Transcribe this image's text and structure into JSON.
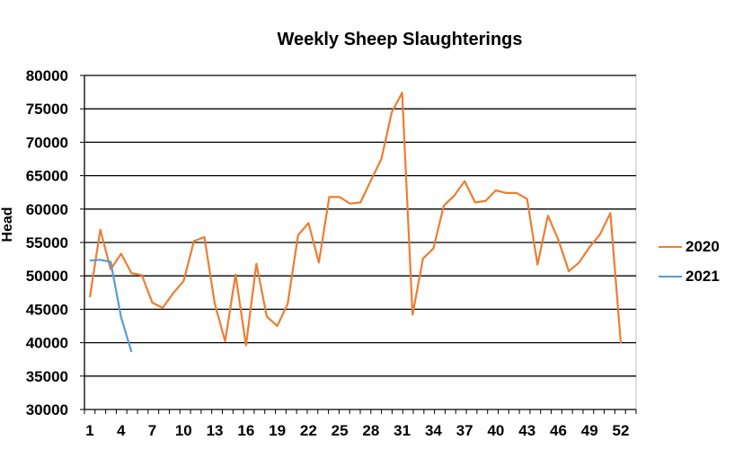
{
  "chart_data": {
    "type": "line",
    "title": "Weekly Sheep Slaughterings",
    "xlabel": "",
    "ylabel": "Head",
    "ylim": [
      30000,
      80000
    ],
    "yticks": [
      30000,
      35000,
      40000,
      45000,
      50000,
      55000,
      60000,
      65000,
      70000,
      75000,
      80000
    ],
    "xlim": [
      1,
      52
    ],
    "xtick_labels": [
      1,
      4,
      7,
      10,
      13,
      16,
      19,
      22,
      25,
      28,
      31,
      34,
      37,
      40,
      43,
      46,
      49,
      52
    ],
    "grid": "horizontal",
    "legend_position": "right",
    "series": [
      {
        "name": "2020",
        "color": "#ED7D31",
        "x": [
          1,
          2,
          3,
          4,
          5,
          6,
          7,
          8,
          9,
          10,
          11,
          12,
          13,
          14,
          15,
          16,
          17,
          18,
          19,
          20,
          21,
          22,
          23,
          24,
          25,
          26,
          27,
          28,
          29,
          30,
          31,
          32,
          33,
          34,
          35,
          36,
          37,
          38,
          39,
          40,
          41,
          42,
          43,
          44,
          45,
          46,
          47,
          48,
          49,
          50,
          51,
          52
        ],
        "values": [
          46800,
          56900,
          51000,
          53300,
          50400,
          50100,
          46000,
          45200,
          47400,
          49200,
          55200,
          55800,
          45800,
          40200,
          50200,
          39600,
          51800,
          43900,
          42500,
          45800,
          56100,
          57900,
          52000,
          61800,
          61800,
          60800,
          61000,
          64300,
          67500,
          74500,
          77400,
          44200,
          52600,
          54100,
          60500,
          62000,
          64200,
          61000,
          61200,
          62800,
          62400,
          62400,
          61500,
          51700,
          59000,
          55400,
          50700,
          52000,
          54300,
          56200,
          59400,
          39900
        ]
      },
      {
        "name": "2021",
        "color": "#5B9BD5",
        "x": [
          1,
          2,
          3,
          4,
          5
        ],
        "values": [
          52300,
          52400,
          52100,
          43800,
          38600
        ]
      }
    ]
  }
}
